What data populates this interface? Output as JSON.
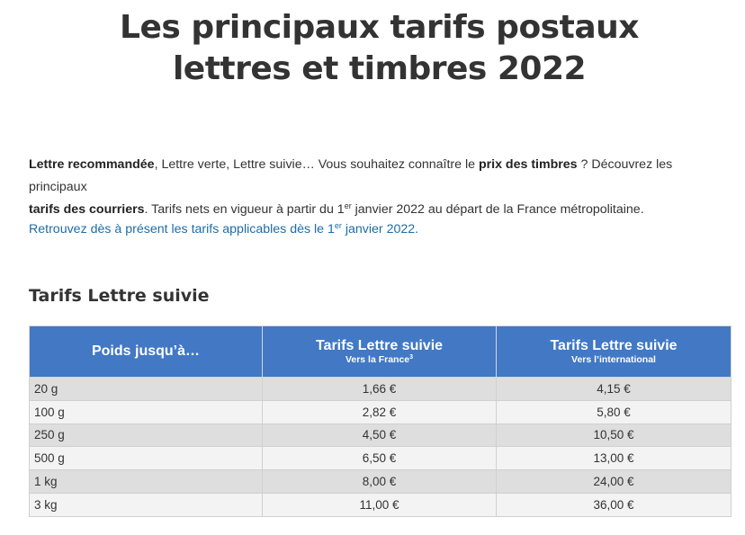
{
  "title": {
    "line1": "Les principaux tarifs postaux",
    "line2": "lettres et timbres 2022"
  },
  "intro": {
    "bold1": "Lettre recommandée",
    "text1": ", Lettre verte, Lettre suivie… Vous souhaitez connaître le ",
    "bold2": "prix des timbres",
    "text2": " ? Découvrez les principaux ",
    "bold3": "tarifs des courriers",
    "text3": ". Tarifs nets en vigueur à partir du 1",
    "sup": "er",
    "text4": " janvier 2022 au départ de la France métropolitaine."
  },
  "link": {
    "text1": "Retrouvez dès à présent les tarifs applicables dès le 1",
    "sup": "er",
    "text2": " janvier 2022."
  },
  "section_title": "Tarifs Lettre suivie",
  "table": {
    "header_color": "#4278c4",
    "headers": [
      {
        "label": "Poids jusqu’à…"
      },
      {
        "label": "Tarifs Lettre suivie",
        "sub": "Vers la France",
        "sub_sup": "3"
      },
      {
        "label": "Tarifs Lettre suivie",
        "sub": "Vers l’international"
      }
    ],
    "rows": [
      [
        "20 g",
        "1,66 €",
        "4,15 €"
      ],
      [
        "100 g",
        "2,82 €",
        "5,80 €"
      ],
      [
        "250 g",
        "4,50 €",
        "10,50 €"
      ],
      [
        "500 g",
        "6,50 €",
        "13,00 €"
      ],
      [
        "1 kg",
        "8,00 €",
        "24,00 €"
      ],
      [
        "3 kg",
        "11,00 €",
        "36,00 €"
      ]
    ]
  }
}
